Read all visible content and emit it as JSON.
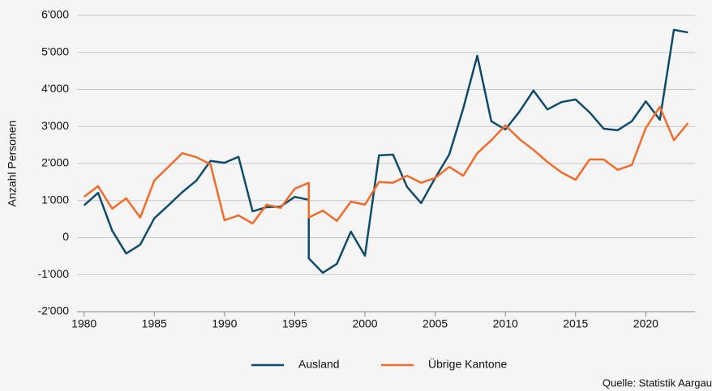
{
  "chart_data": {
    "type": "line",
    "y_label": "Anzahl Personen",
    "source": "Quelle: Statistik Aargau",
    "x": [
      1980,
      1981,
      1982,
      1983,
      1984,
      1985,
      1986,
      1987,
      1988,
      1989,
      1990,
      1991,
      1992,
      1993,
      1994,
      1995,
      1996,
      1996,
      1997,
      1998,
      1999,
      2000,
      2001,
      2002,
      2003,
      2004,
      2005,
      2006,
      2007,
      2008,
      2009,
      2010,
      2011,
      2012,
      2013,
      2014,
      2015,
      2016,
      2017,
      2018,
      2019,
      2020,
      2021,
      2022,
      2023
    ],
    "series": [
      {
        "name": "Ausland",
        "color": "#0f4c6b",
        "values": [
          870,
          1210,
          190,
          -430,
          -190,
          520,
          870,
          1230,
          1540,
          2070,
          2020,
          2180,
          710,
          820,
          840,
          1100,
          1020,
          -560,
          -950,
          -710,
          160,
          -490,
          2220,
          2240,
          1370,
          930,
          1610,
          2240,
          3490,
          4910,
          3140,
          2920,
          3400,
          3970,
          3460,
          3660,
          3730,
          3380,
          2940,
          2900,
          3140,
          3680,
          3180,
          5610,
          5540
        ]
      },
      {
        "name": "Übrige Kantone",
        "color": "#f26b2a",
        "values": [
          1100,
          1390,
          780,
          1060,
          540,
          1540,
          1910,
          2280,
          2170,
          1980,
          470,
          600,
          380,
          890,
          800,
          1320,
          1480,
          540,
          730,
          450,
          970,
          890,
          1500,
          1480,
          1670,
          1480,
          1610,
          1910,
          1670,
          2280,
          2630,
          3030,
          2660,
          2370,
          2040,
          1760,
          1560,
          2110,
          2110,
          1830,
          1960,
          2960,
          3530,
          2630,
          3090
        ]
      }
    ],
    "xlim": [
      1979.5,
      2023.5
    ],
    "xticks": [
      1980,
      1985,
      1990,
      1995,
      2000,
      2005,
      2010,
      2015,
      2020
    ],
    "ylim": [
      -2000,
      6000
    ],
    "yticks": [
      {
        "value": -2000,
        "label": "-2'000"
      },
      {
        "value": -1000,
        "label": "-1'000"
      },
      0,
      {
        "value": 1000,
        "label": "1'000"
      },
      {
        "value": 2000,
        "label": "2'000"
      },
      {
        "value": 3000,
        "label": "3'000"
      },
      {
        "value": 4000,
        "label": "4'000"
      },
      {
        "value": 5000,
        "label": "5'000"
      },
      {
        "value": 6000,
        "label": "6'000"
      }
    ],
    "grid": true,
    "legend": "bottom"
  }
}
